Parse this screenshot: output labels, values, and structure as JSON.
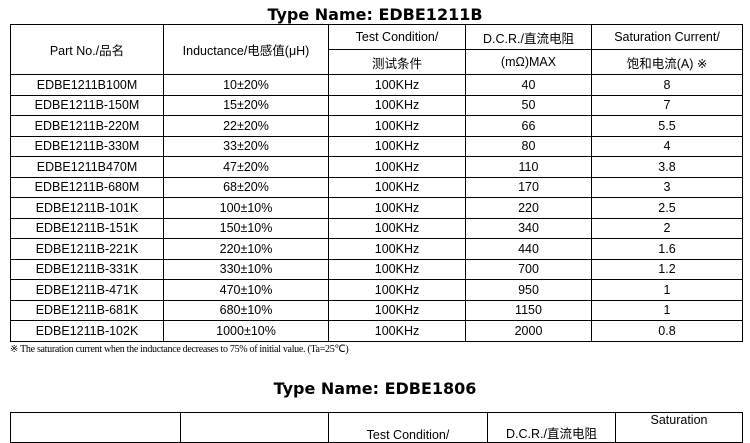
{
  "table1": {
    "title": "Type Name: EDBE1211B",
    "headers": [
      [
        "Part No./品名",
        ""
      ],
      [
        "Inductance/电感值(μH)",
        ""
      ],
      [
        "Test Condition/",
        "测试条件"
      ],
      [
        "D.C.R./直流电阻",
        "(mΩ)MAX"
      ],
      [
        "Saturation Current/",
        "饱和电流(A) ※"
      ]
    ],
    "rows": [
      [
        "EDBE1211B100M",
        "10±20%",
        "100KHz",
        "40",
        "8"
      ],
      [
        "EDBE1211B-150M",
        "15±20%",
        "100KHz",
        "50",
        "7"
      ],
      [
        "EDBE1211B-220M",
        "22±20%",
        "100KHz",
        "66",
        "5.5"
      ],
      [
        "EDBE1211B-330M",
        "33±20%",
        "100KHz",
        "80",
        "4"
      ],
      [
        "EDBE1211B470M",
        "47±20%",
        "100KHz",
        "110",
        "3.8"
      ],
      [
        "EDBE1211B-680M",
        "68±20%",
        "100KHz",
        "170",
        "3"
      ],
      [
        "EDBE1211B-101K",
        "100±10%",
        "100KHz",
        "220",
        "2.5"
      ],
      [
        "EDBE1211B-151K",
        "150±10%",
        "100KHz",
        "340",
        "2"
      ],
      [
        "EDBE1211B-221K",
        "220±10%",
        "100KHz",
        "440",
        "1.6"
      ],
      [
        "EDBE1211B-331K",
        "330±10%",
        "100KHz",
        "700",
        "1.2"
      ],
      [
        "EDBE1211B-471K",
        "470±10%",
        "100KHz",
        "950",
        "1"
      ],
      [
        "EDBE1211B-681K",
        "680±10%",
        "100KHz",
        "1150",
        "1"
      ],
      [
        "EDBE1211B-102K",
        "1000±10%",
        "100KHz",
        "2000",
        "0.8"
      ]
    ],
    "note": "※  The saturation current when the inductance decreases to 75% of   initial value. (Ta=25℃)"
  },
  "table2": {
    "title": "Type Name: EDBE1806",
    "headers": [
      "",
      "",
      "Test Condition/",
      "D.C.R./直流电阻",
      "Saturation"
    ]
  }
}
